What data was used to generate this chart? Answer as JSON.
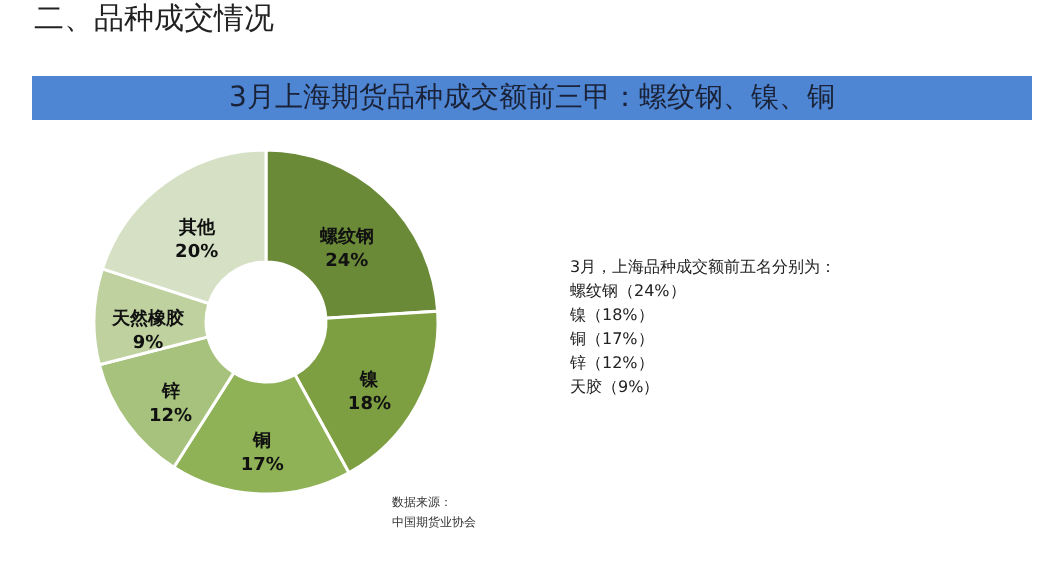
{
  "chart_data": {
    "type": "donut",
    "title": "二、品种成交情况",
    "subtitle": "3月上海期货品种成交额前三甲：螺纹钢、镍、铜",
    "categories": [
      "螺纹钢",
      "镍",
      "铜",
      "锌",
      "天然橡胶",
      "其他"
    ],
    "values": [
      24,
      18,
      17,
      12,
      9,
      20
    ],
    "value_labels": [
      "24%",
      "18%",
      "17%",
      "12%",
      "9%",
      "20%"
    ],
    "colors": [
      "#6b8a38",
      "#7d9f42",
      "#8fb257",
      "#a7c27c",
      "#bfd19f",
      "#d6e0c4"
    ],
    "annotations": [
      "3月，上海品种成交额前五名分别为：",
      "螺纹钢（24%）",
      "镍（18%）",
      "铜（17%）",
      "锌（12%）",
      "天胶（9%）",
      "数据来源：",
      "中国期货业协会"
    ],
    "legend": false
  }
}
